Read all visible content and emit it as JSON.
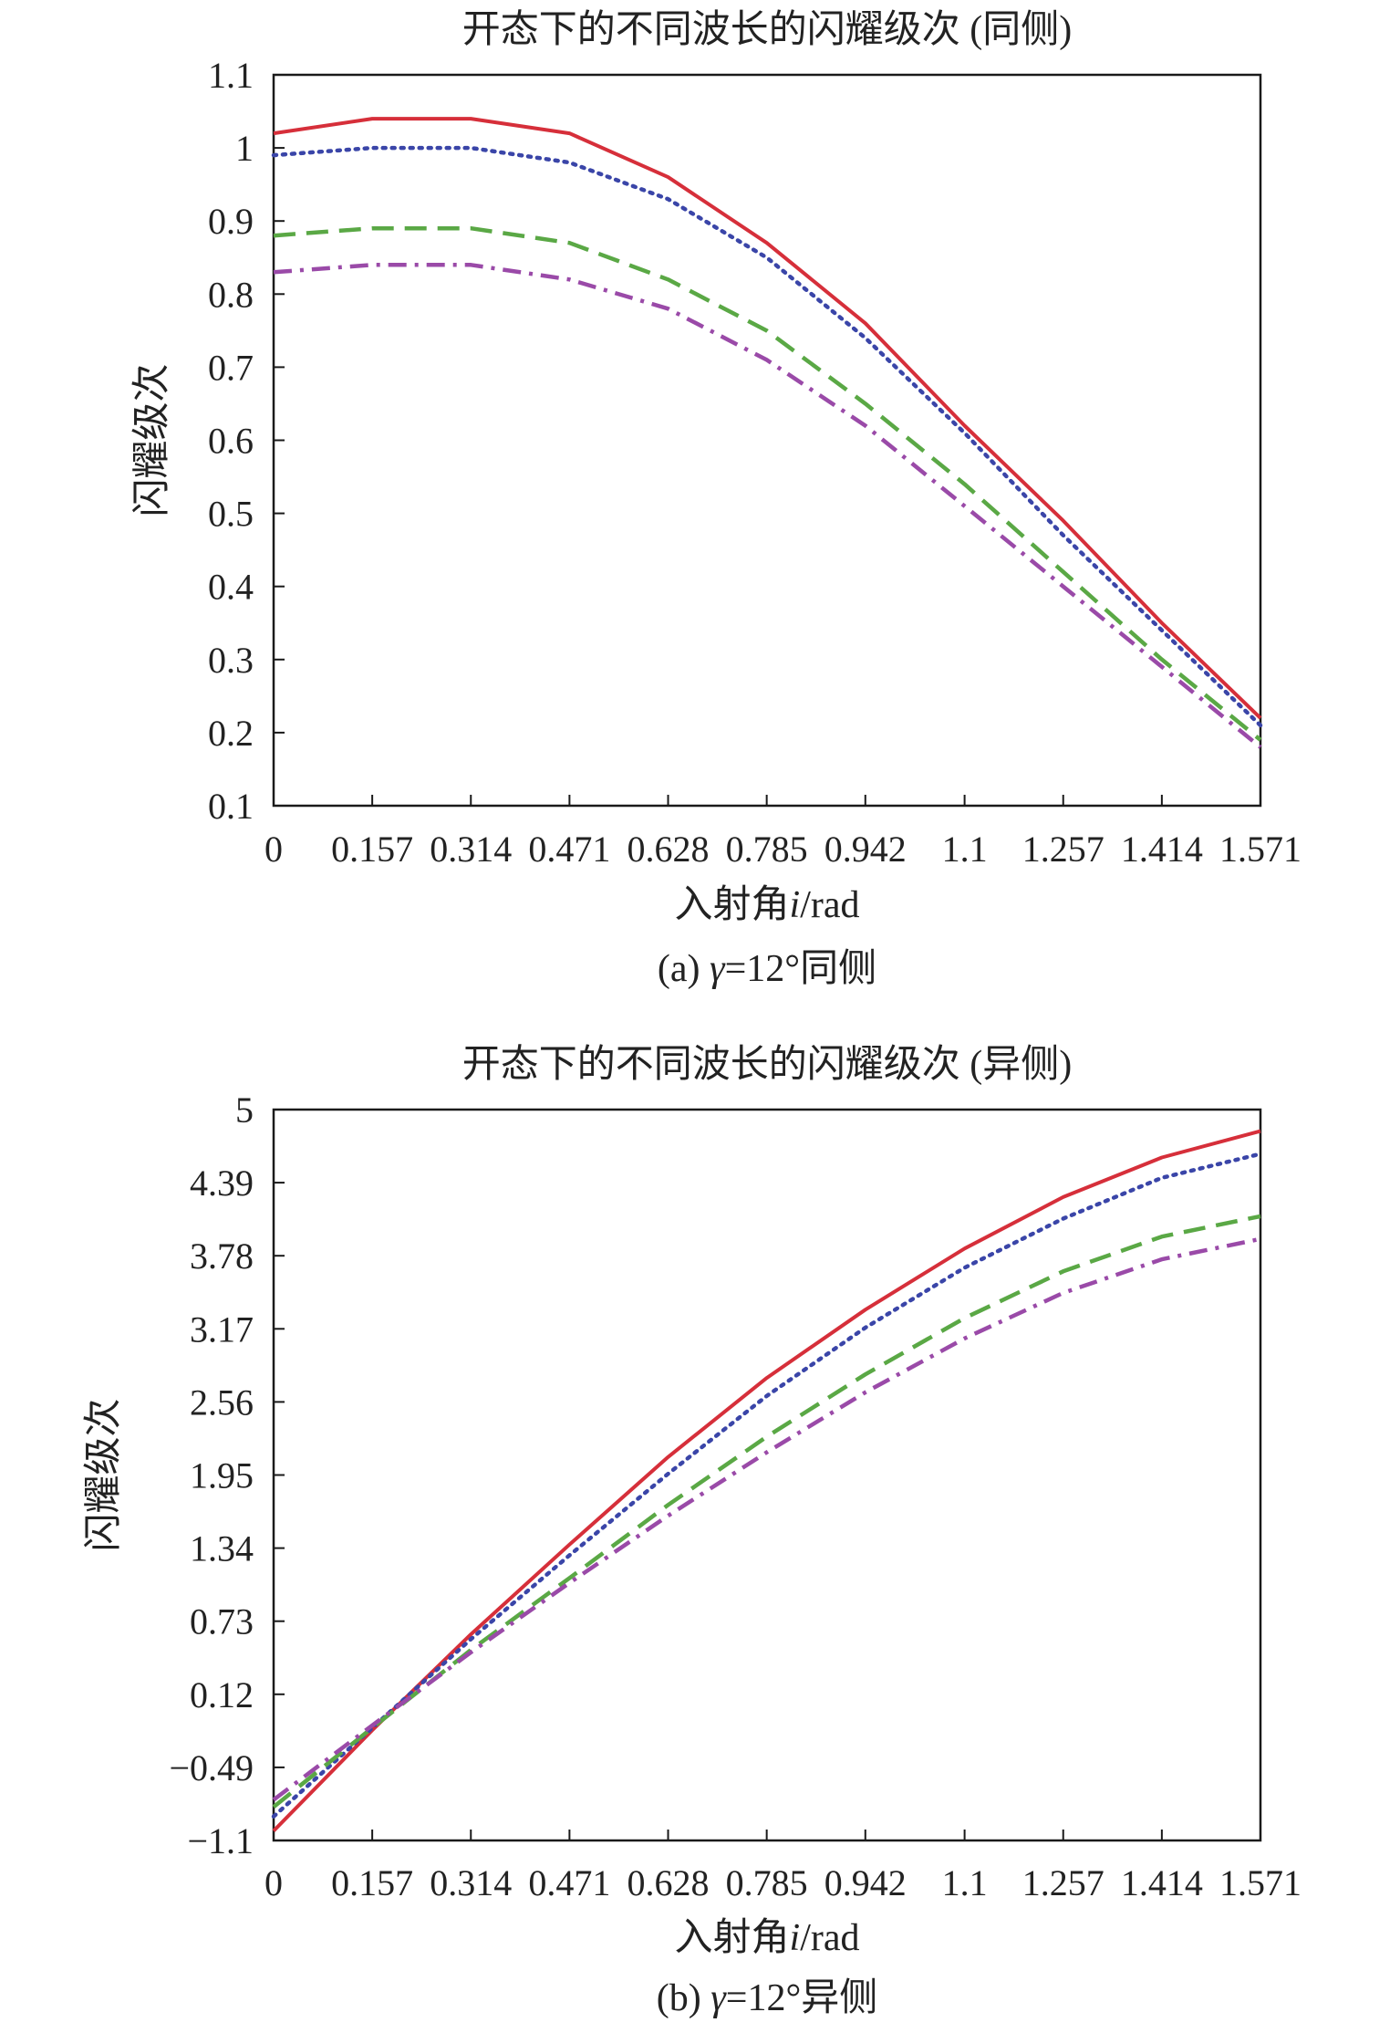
{
  "chart_data": [
    {
      "type": "line",
      "title": "开态下的不同波长的闪耀级次 (同侧)",
      "xlabel_main": "入射角",
      "xlabel_var": "i",
      "xlabel_unit": "/rad",
      "ylabel": "闪耀级次",
      "caption_prefix": "(a) ",
      "caption_var": "γ",
      "caption_rest": "=12°同侧",
      "xlim": [
        0,
        1.571
      ],
      "ylim": [
        0.1,
        1.1
      ],
      "x_ticks": [
        0,
        0.157,
        0.314,
        0.471,
        0.628,
        0.785,
        0.942,
        1.1,
        1.257,
        1.414,
        1.571
      ],
      "x_tick_labels": [
        "0",
        "0.157",
        "0.314",
        "0.471",
        "0.628",
        "0.785",
        "0.942",
        "1.1",
        "1.257",
        "1.414",
        "1.571"
      ],
      "y_ticks": [
        0.1,
        0.2,
        0.3,
        0.4,
        0.5,
        0.6,
        0.7,
        0.8,
        0.9,
        1.0,
        1.1
      ],
      "y_tick_labels": [
        "0.1",
        "0.2",
        "0.3",
        "0.4",
        "0.5",
        "0.6",
        "0.7",
        "0.8",
        "0.9",
        "1",
        "1.1"
      ],
      "grid": false,
      "x": [
        0,
        0.157,
        0.314,
        0.471,
        0.628,
        0.785,
        0.942,
        1.1,
        1.257,
        1.414,
        1.571
      ],
      "series": [
        {
          "style": "solid",
          "color": "#d62f3a",
          "values": [
            1.02,
            1.04,
            1.04,
            1.02,
            0.96,
            0.87,
            0.76,
            0.62,
            0.49,
            0.35,
            0.22
          ]
        },
        {
          "style": "dotted",
          "color": "#3a45a8",
          "values": [
            0.99,
            1.0,
            1.0,
            0.98,
            0.93,
            0.85,
            0.74,
            0.61,
            0.47,
            0.34,
            0.21
          ]
        },
        {
          "style": "dashed",
          "color": "#5aa845",
          "values": [
            0.88,
            0.89,
            0.89,
            0.87,
            0.82,
            0.75,
            0.65,
            0.54,
            0.42,
            0.3,
            0.19
          ]
        },
        {
          "style": "dashdot",
          "color": "#9a4aa8",
          "values": [
            0.83,
            0.84,
            0.84,
            0.82,
            0.78,
            0.71,
            0.62,
            0.51,
            0.4,
            0.29,
            0.18
          ]
        }
      ]
    },
    {
      "type": "line",
      "title": "开态下的不同波长的闪耀级次 (异侧)",
      "xlabel_main": "入射角",
      "xlabel_var": "i",
      "xlabel_unit": "/rad",
      "ylabel": "闪耀级次",
      "caption_prefix": "(b) ",
      "caption_var": "γ",
      "caption_rest": "=12°异侧",
      "xlim": [
        0,
        1.571
      ],
      "ylim": [
        -1.1,
        5
      ],
      "x_ticks": [
        0,
        0.157,
        0.314,
        0.471,
        0.628,
        0.785,
        0.942,
        1.1,
        1.257,
        1.414,
        1.571
      ],
      "x_tick_labels": [
        "0",
        "0.157",
        "0.314",
        "0.471",
        "0.628",
        "0.785",
        "0.942",
        "1.1",
        "1.257",
        "1.414",
        "1.571"
      ],
      "y_ticks": [
        -1.1,
        -0.49,
        0.12,
        0.73,
        1.34,
        1.95,
        2.56,
        3.17,
        3.78,
        4.39,
        5
      ],
      "y_tick_labels": [
        "−1.1",
        "−0.49",
        "0.12",
        "0.73",
        "1.34",
        "1.95",
        "2.56",
        "3.17",
        "3.78",
        "4.39",
        "5"
      ],
      "grid": false,
      "x": [
        0,
        0.157,
        0.314,
        0.471,
        0.628,
        0.785,
        0.942,
        1.1,
        1.257,
        1.414,
        1.571
      ],
      "series": [
        {
          "style": "solid",
          "color": "#d62f3a",
          "values": [
            -1.02,
            -0.18,
            0.62,
            1.37,
            2.1,
            2.76,
            3.33,
            3.84,
            4.27,
            4.6,
            4.82
          ]
        },
        {
          "style": "dotted",
          "color": "#3a45a8",
          "values": [
            -0.9,
            -0.16,
            0.58,
            1.28,
            1.96,
            2.61,
            3.18,
            3.68,
            4.09,
            4.43,
            4.63
          ]
        },
        {
          "style": "dashed",
          "color": "#5aa845",
          "values": [
            -0.82,
            -0.16,
            0.49,
            1.09,
            1.7,
            2.27,
            2.79,
            3.26,
            3.65,
            3.94,
            4.11
          ]
        },
        {
          "style": "dashdot",
          "color": "#9a4aa8",
          "values": [
            -0.76,
            -0.14,
            0.47,
            1.05,
            1.61,
            2.14,
            2.64,
            3.09,
            3.47,
            3.75,
            3.92
          ]
        }
      ]
    }
  ]
}
